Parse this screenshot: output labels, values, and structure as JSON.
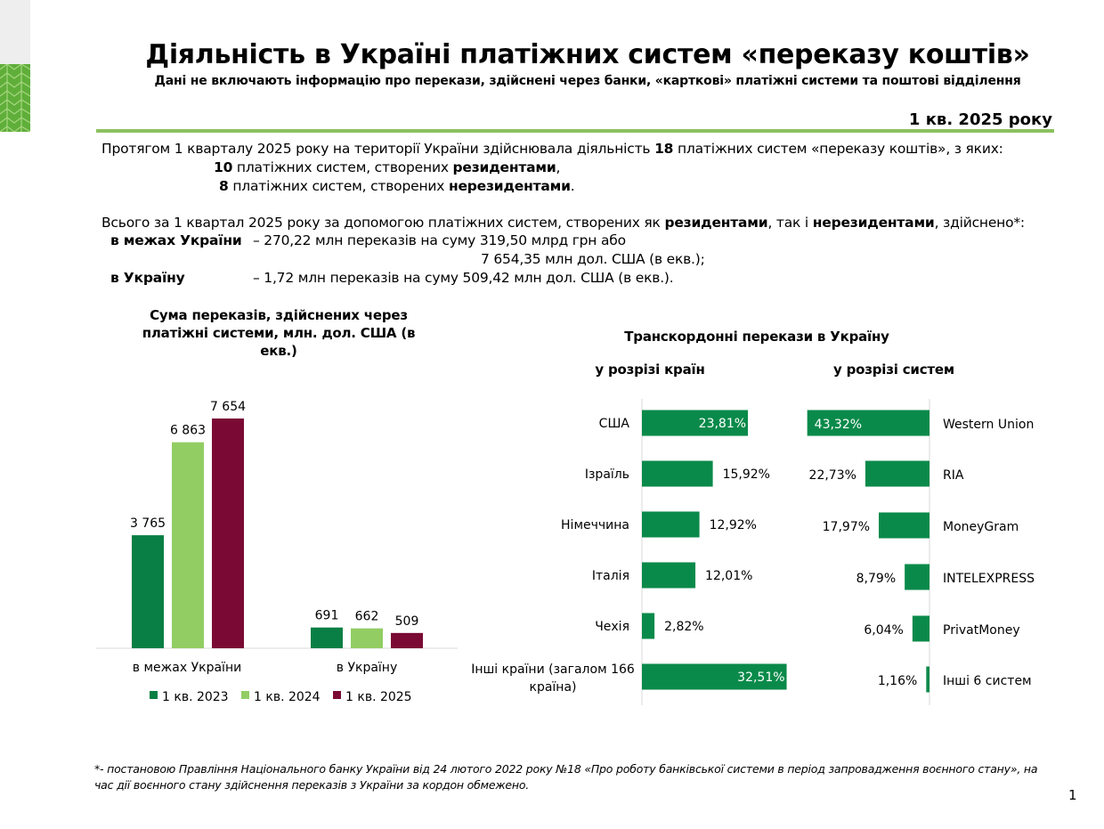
{
  "title": "Діяльність в Україні платіжних систем «переказу коштів»",
  "subtitle": "Дані не включають інформацію про перекази, здійснені через банки, «карткові» платіжні системи та поштові відділення",
  "period": "1 кв. 2025 року",
  "intro": {
    "line1_a": "Протягом 1 кварталу 2025 року на території України здійснювала діяльність ",
    "line1_num": "18",
    "line1_b": " платіжних систем «переказу коштів», з яких:",
    "line2_num": "10",
    "line2_a": " платіжних систем, створених ",
    "line2_bold": "резидентами",
    "line2_end": ",",
    "line3_num": "8",
    "line3_a": " платіжних систем, створених ",
    "line3_bold": "нерезидентами",
    "line3_end": "."
  },
  "totals": {
    "line1_a": "Всього за 1 квартал 2025 року за допомогою платіжних систем, створених як ",
    "line1_b1": "резидентами",
    "line1_c": ", так і ",
    "line1_b2": "нерезидентами",
    "line1_d": ", здійснено*:",
    "domestic_label": "в межах України",
    "domestic_text": "– 270,22 млн переказів на суму 319,50 млрд грн або",
    "domestic_text2": "7 654,35 млн дол. США (в екв.);",
    "inbound_label": "в Україну",
    "inbound_text": "– 1,72 млн переказів на суму 509,42 млн дол. США (в екв.)."
  },
  "footnote": {
    "line1": "*- постановою Правління Національного банку України від 24 лютого 2022 року №18 «Про роботу банківської системи в період запровадження воєнного стану», на",
    "line2": "час дії воєнного стану здійснення переказів з України за кордон обмежено."
  },
  "page_number": "1",
  "colors": {
    "c2023": "#0a7f45",
    "c2024": "#92cd63",
    "c2025": "#7a0a34",
    "hbar": "#0a8a4a",
    "accent_line": "#8cc060"
  },
  "chart_data": [
    {
      "type": "bar",
      "title_lines": [
        "Сума переказів, здійснених через",
        "платіжні системи, млн. дол. США (в",
        "екв.)"
      ],
      "categories": [
        "в межах України",
        "в Україну"
      ],
      "series": [
        {
          "name": "1 кв. 2023",
          "values": [
            3765,
            691
          ],
          "labels": [
            "3 765",
            "691"
          ],
          "color": "#0a7f45"
        },
        {
          "name": "1 кв. 2024",
          "values": [
            6863,
            662
          ],
          "labels": [
            "6 863",
            "662"
          ],
          "color": "#92cd63"
        },
        {
          "name": "1 кв. 2025",
          "values": [
            7654,
            509
          ],
          "labels": [
            "7 654",
            "509"
          ],
          "color": "#7a0a34"
        }
      ],
      "ylim": [
        0,
        7654
      ],
      "legend": "bottom"
    },
    {
      "type": "bar",
      "orientation": "horizontal",
      "group_title": "Транскордонні перекази в Україну",
      "title": "у розрізі країн",
      "categories": [
        "США",
        "Ізраїль",
        "Німеччина",
        "Італія",
        "Чехія",
        "Інші країни (загалом 166 країна)"
      ],
      "category_lines": [
        [
          "США"
        ],
        [
          "Ізраїль"
        ],
        [
          "Німеччина"
        ],
        [
          "Італія"
        ],
        [
          "Чехія"
        ],
        [
          "Інші країни (загалом 166",
          "країна)"
        ]
      ],
      "values": [
        23.81,
        15.92,
        12.92,
        12.01,
        2.82,
        32.51
      ],
      "labels": [
        "23,81%",
        "15,92%",
        "12,92%",
        "12,01%",
        "2,82%",
        "32,51%"
      ],
      "unit": "%"
    },
    {
      "type": "bar",
      "orientation": "horizontal",
      "title": "у розрізі систем",
      "categories": [
        "Western Union",
        "RIA",
        "MoneyGram",
        "INTELEXPRESS",
        "PrivatMoney",
        "Інші 6 систем"
      ],
      "values": [
        43.32,
        22.73,
        17.97,
        8.79,
        6.04,
        1.16
      ],
      "labels": [
        "43,32%",
        "22,73%",
        "17,97%",
        "8,79%",
        "6,04%",
        "1,16%"
      ],
      "unit": "%"
    }
  ]
}
